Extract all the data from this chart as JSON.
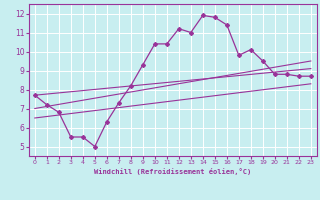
{
  "xlabel": "Windchill (Refroidissement éolien,°C)",
  "bg_color": "#c8eef0",
  "grid_color": "#ffffff",
  "line_color": "#993399",
  "xlim": [
    -0.5,
    23.5
  ],
  "ylim": [
    4.5,
    12.5
  ],
  "xticks": [
    0,
    1,
    2,
    3,
    4,
    5,
    6,
    7,
    8,
    9,
    10,
    11,
    12,
    13,
    14,
    15,
    16,
    17,
    18,
    19,
    20,
    21,
    22,
    23
  ],
  "yticks": [
    5,
    6,
    7,
    8,
    9,
    10,
    11,
    12
  ],
  "curve1_x": [
    0,
    1,
    2,
    3,
    4,
    5,
    6,
    7,
    8,
    9,
    10,
    11,
    12,
    13,
    14,
    15,
    16,
    17,
    18,
    19,
    20,
    21,
    22,
    23
  ],
  "curve1_y": [
    7.7,
    7.2,
    6.8,
    5.5,
    5.5,
    5.0,
    6.3,
    7.3,
    8.2,
    9.3,
    10.4,
    10.4,
    11.2,
    11.0,
    11.9,
    11.8,
    11.4,
    9.8,
    10.1,
    9.5,
    8.8,
    8.8,
    8.7,
    8.7
  ],
  "line1_x": [
    0,
    23
  ],
  "line1_y": [
    7.7,
    9.1
  ],
  "line2_x": [
    0,
    23
  ],
  "line2_y": [
    7.0,
    9.5
  ],
  "line3_x": [
    0,
    23
  ],
  "line3_y": [
    6.5,
    8.3
  ]
}
